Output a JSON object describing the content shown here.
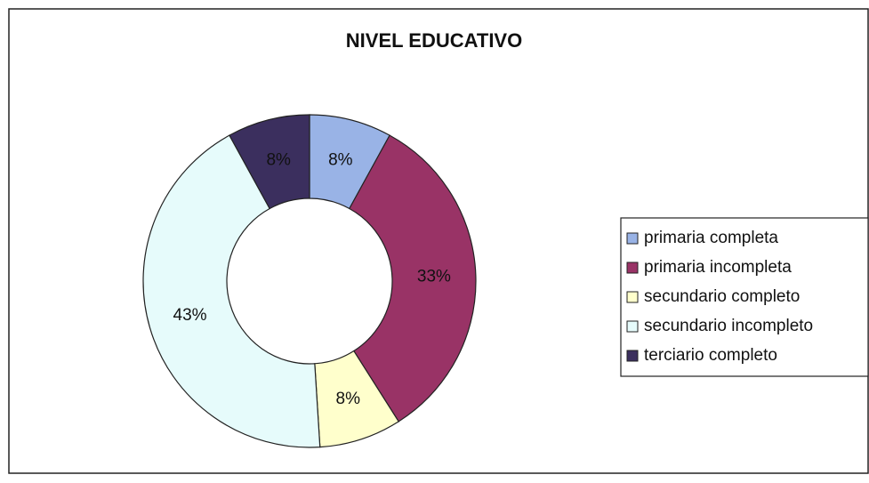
{
  "chart_data": {
    "type": "donut",
    "title": "NIVEL EDUCATIVO",
    "categories": [
      "primaria completa",
      "primaria incompleta",
      "secundario completo",
      "secundario incompleto",
      "terciario completo"
    ],
    "values": [
      8,
      33,
      8,
      43,
      8
    ],
    "value_labels": [
      "8%",
      "33%",
      "8%",
      "43%",
      "8%"
    ],
    "colors": [
      "#99b3e6",
      "#993366",
      "#ffffcc",
      "#e6fbfb",
      "#3b2f5e"
    ],
    "legend": "right"
  }
}
